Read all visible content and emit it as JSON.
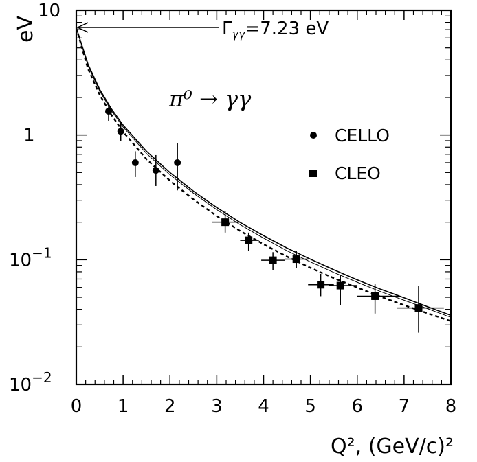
{
  "chart_data": {
    "type": "scatter",
    "title": "",
    "xlabel": "Q², (GeV/c)²",
    "ylabel": "eV",
    "xlim": [
      0,
      8
    ],
    "ylim": [
      0.01,
      10
    ],
    "yscale": "log",
    "x_ticks": [
      "0",
      "1",
      "2",
      "3",
      "4",
      "5",
      "6",
      "7",
      "8"
    ],
    "y_ticks": [
      {
        "value": 0.01,
        "base": "10",
        "exp": "−2"
      },
      {
        "value": 0.1,
        "base": "10",
        "exp": "−1"
      },
      {
        "value": 1,
        "base": "1",
        "exp": ""
      },
      {
        "value": 10,
        "base": "",
        "exp": "10"
      }
    ],
    "process_label": "π⁰ → γγ",
    "annotation": {
      "gamma_symbol": "Γ",
      "gamma_subscript": "γγ",
      "text": "=7.23 eV",
      "value": 7.23
    },
    "legend_placement": "right",
    "series": [
      {
        "name": "CELLO",
        "marker": "circle",
        "points": [
          {
            "x": 0.69,
            "y": 1.55,
            "ylo": 1.3,
            "yhi": 1.8
          },
          {
            "x": 0.95,
            "y": 1.07,
            "ylo": 0.9,
            "yhi": 1.27
          },
          {
            "x": 1.26,
            "y": 0.6,
            "ylo": 0.46,
            "yhi": 0.74
          },
          {
            "x": 1.7,
            "y": 0.52,
            "ylo": 0.39,
            "yhi": 0.69
          },
          {
            "x": 2.16,
            "y": 0.6,
            "ylo": 0.36,
            "yhi": 0.86
          }
        ]
      },
      {
        "name": "CLEO",
        "marker": "square",
        "points": [
          {
            "x": 3.18,
            "y": 0.2,
            "xlo": 2.9,
            "xhi": 3.5,
            "ylo": 0.165,
            "yhi": 0.245
          },
          {
            "x": 3.68,
            "y": 0.143,
            "xlo": 3.5,
            "xhi": 3.9,
            "ylo": 0.118,
            "yhi": 0.165
          },
          {
            "x": 4.2,
            "y": 0.099,
            "xlo": 3.95,
            "xhi": 4.45,
            "ylo": 0.083,
            "yhi": 0.115
          },
          {
            "x": 4.7,
            "y": 0.101,
            "xlo": 4.45,
            "xhi": 4.95,
            "ylo": 0.086,
            "yhi": 0.118
          },
          {
            "x": 5.22,
            "y": 0.063,
            "xlo": 4.95,
            "xhi": 5.5,
            "ylo": 0.051,
            "yhi": 0.077
          },
          {
            "x": 5.64,
            "y": 0.062,
            "xlo": 5.4,
            "xhi": 6.0,
            "ylo": 0.043,
            "yhi": 0.076
          },
          {
            "x": 6.38,
            "y": 0.051,
            "xlo": 6.0,
            "xhi": 6.9,
            "ylo": 0.037,
            "yhi": 0.064
          },
          {
            "x": 7.31,
            "y": 0.041,
            "xlo": 6.85,
            "xhi": 7.85,
            "ylo": 0.026,
            "yhi": 0.062
          }
        ]
      }
    ],
    "curves": [
      {
        "style": "solid",
        "width": 1.6,
        "x": [
          0,
          0.25,
          0.5,
          0.75,
          1,
          1.5,
          2,
          2.5,
          3,
          3.5,
          4,
          4.5,
          5,
          5.5,
          6,
          6.5,
          7,
          7.5,
          8
        ],
        "y": [
          7.23,
          3.7,
          2.32,
          1.62,
          1.2,
          0.74,
          0.5,
          0.355,
          0.262,
          0.199,
          0.156,
          0.124,
          0.101,
          0.083,
          0.069,
          0.058,
          0.0495,
          0.042,
          0.0358
        ]
      },
      {
        "style": "solid",
        "width": 1.0,
        "x": [
          0,
          0.25,
          0.5,
          0.75,
          1,
          1.5,
          2,
          2.5,
          3,
          3.5,
          4,
          4.5,
          5,
          5.5,
          6,
          6.5,
          7,
          7.5,
          8
        ],
        "y": [
          7.23,
          3.6,
          2.25,
          1.57,
          1.16,
          0.71,
          0.48,
          0.342,
          0.252,
          0.191,
          0.149,
          0.118,
          0.096,
          0.079,
          0.066,
          0.0555,
          0.0473,
          0.0405,
          0.0345
        ]
      },
      {
        "style": "dashed",
        "width": 2.4,
        "x": [
          0,
          0.25,
          0.5,
          0.75,
          1,
          1.5,
          2,
          2.5,
          3,
          3.5,
          4,
          4.5,
          5,
          5.5,
          6,
          6.5,
          7,
          7.5,
          8
        ],
        "y": [
          7.23,
          3.4,
          2.1,
          1.45,
          1.06,
          0.64,
          0.43,
          0.305,
          0.224,
          0.17,
          0.133,
          0.106,
          0.086,
          0.0712,
          0.0598,
          0.0505,
          0.0432,
          0.0372,
          0.0322
        ]
      }
    ]
  }
}
